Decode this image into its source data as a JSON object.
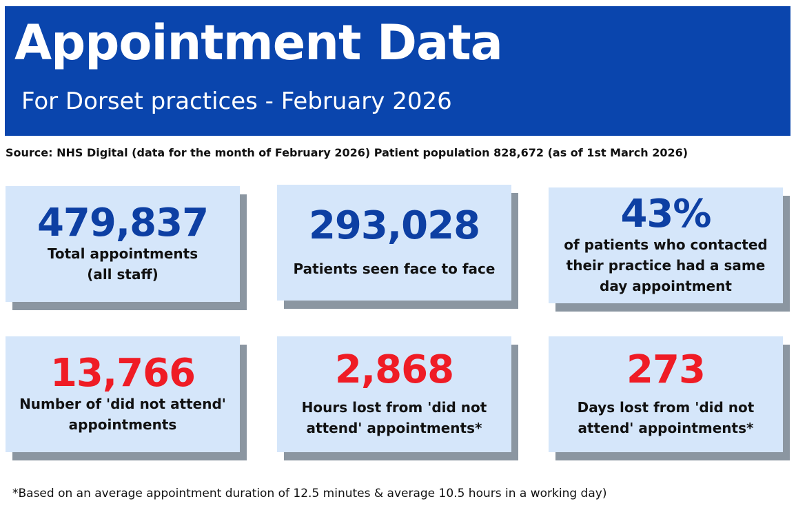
{
  "header": {
    "title": "Appointment Data",
    "subtitle": "For Dorset practices - February 2026"
  },
  "source": "Source: NHS Digital (data for the month of February 2026) Patient population 828,672 (as of 1st March 2026)",
  "colors": {
    "banner": "#0a45ad",
    "stat_blue": "#0d3fa3",
    "stat_red": "#ef1c25",
    "card_bg": "#d5e6fa",
    "card_shadow": "#8b96a1"
  },
  "stats": [
    {
      "value": "479,837",
      "label_line1": "Total appointments",
      "label_line2": "(all staff)"
    },
    {
      "value": "293,028",
      "label_line1": "Patients seen face to face"
    },
    {
      "value": "43%",
      "label_line1": "of patients who contacted",
      "label_line2": "their practice had a same",
      "label_line3": "day appointment"
    },
    {
      "value": "13,766",
      "label_line1": "Number of 'did not attend'",
      "label_line2": "appointments"
    },
    {
      "value": "2,868",
      "label_line1": "Hours lost from 'did not",
      "label_line2": "attend' appointments*"
    },
    {
      "value": "273",
      "label_line1": "Days lost from 'did not",
      "label_line2": "attend' appointments*"
    }
  ],
  "footnote": "*Based on an average appointment duration of 12.5 minutes & average 10.5 hours in a working day)"
}
